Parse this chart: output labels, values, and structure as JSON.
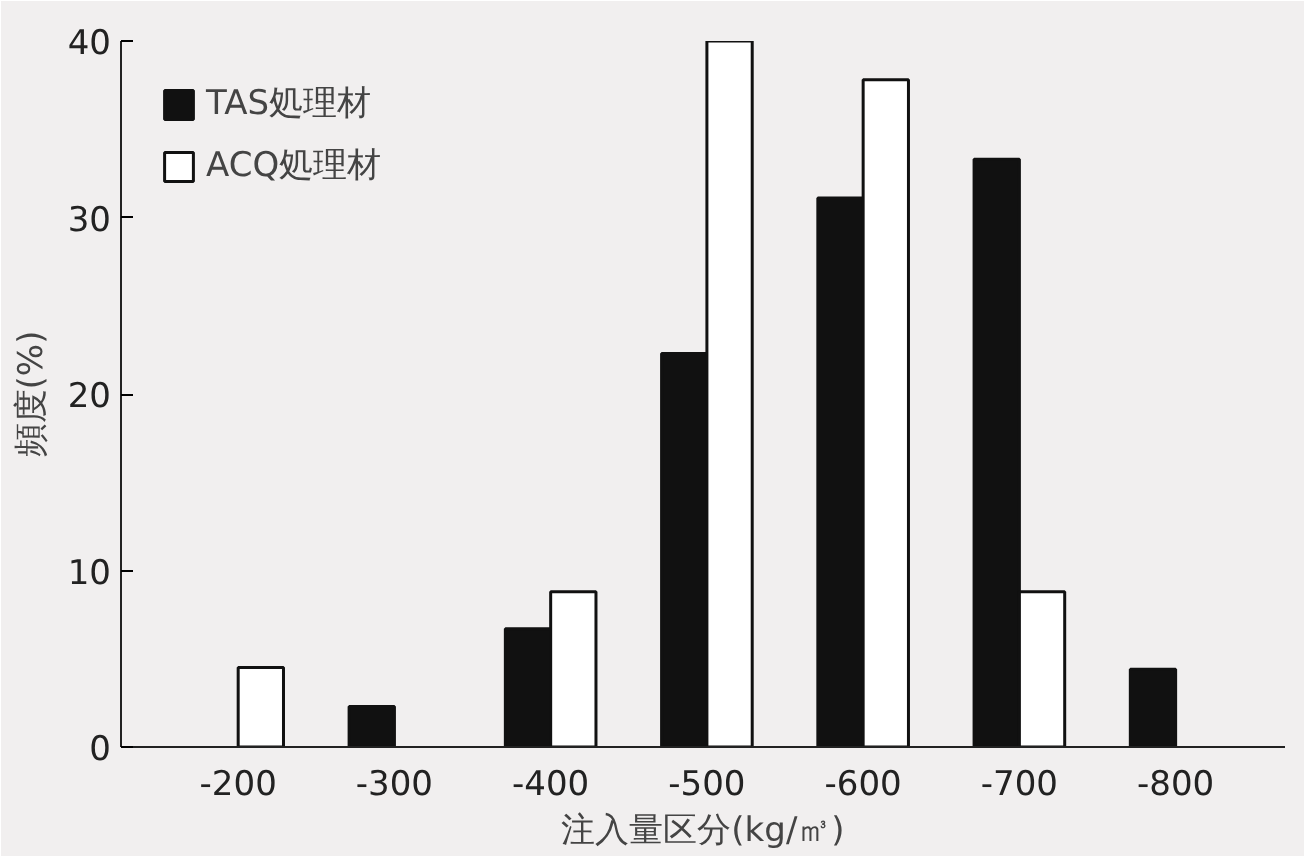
{
  "chart_data": {
    "type": "bar",
    "xlabel": "注入量区分(kg/㎥)",
    "ylabel": "頻度(%)",
    "categories": [
      "-200",
      "-300",
      "-400",
      "-500",
      "-600",
      "-700",
      "-800"
    ],
    "series": [
      {
        "name": "TAS処理材",
        "color": "#111111",
        "values": [
          null,
          2.3,
          6.7,
          22.3,
          31.1,
          33.3,
          4.4
        ]
      },
      {
        "name": "ACQ処理材",
        "color": "#ffffff",
        "values": [
          4.5,
          null,
          8.8,
          40,
          37.8,
          8.8,
          null
        ]
      }
    ],
    "ylim": [
      0,
      40
    ],
    "yticks": [
      0,
      10,
      20,
      30,
      40
    ],
    "grid": false,
    "legend": "top left"
  }
}
